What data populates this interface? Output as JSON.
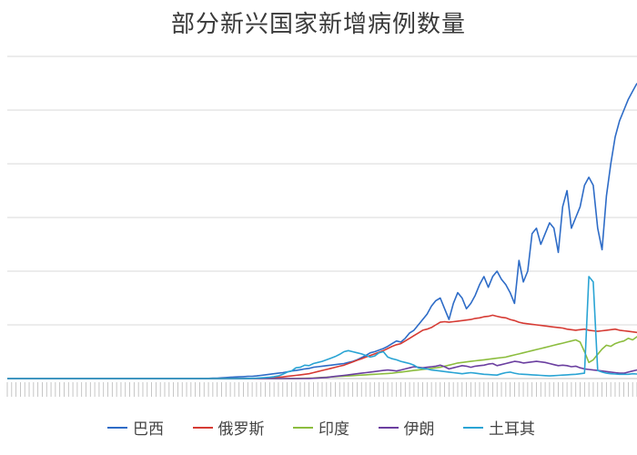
{
  "chart_data": {
    "type": "line",
    "title": "部分新兴国家新增病例数量",
    "xlabel": "",
    "ylabel": "",
    "ylim": [
      0,
      60000
    ],
    "grid": true,
    "legend_position": "bottom",
    "series": [
      {
        "name": "巴西",
        "color": "#2e6cc7",
        "values": [
          0,
          0,
          0,
          0,
          0,
          0,
          0,
          0,
          0,
          0,
          0,
          0,
          0,
          0,
          0,
          0,
          0,
          0,
          0,
          0,
          0,
          0,
          0,
          0,
          0,
          0,
          0,
          0,
          0,
          0,
          0,
          0,
          0,
          0,
          0,
          0,
          0,
          0,
          0,
          0,
          0,
          0,
          0,
          0,
          10,
          20,
          40,
          60,
          90,
          130,
          180,
          230,
          280,
          320,
          360,
          400,
          430,
          500,
          600,
          700,
          800,
          900,
          1000,
          1100,
          1250,
          1400,
          1500,
          1650,
          1800,
          1900,
          2100,
          2200,
          2300,
          2400,
          2500,
          2600,
          2700,
          2800,
          3000,
          3200,
          3500,
          3900,
          4300,
          4800,
          5000,
          5300,
          5600,
          6000,
          6500,
          7000,
          6800,
          7500,
          8500,
          9000,
          10000,
          11000,
          12000,
          13500,
          14500,
          15000,
          13000,
          11000,
          14000,
          16000,
          15000,
          13000,
          14000,
          15500,
          17500,
          19000,
          17000,
          19000,
          20000,
          18500,
          17500,
          16000,
          14000,
          22000,
          18000,
          20000,
          27000,
          28000,
          25000,
          27000,
          29000,
          28000,
          23500,
          32000,
          35000,
          28000,
          30000,
          32000,
          36000,
          37500,
          36000,
          28000,
          24000,
          34000,
          40000,
          45000,
          48000,
          50000,
          52000,
          53500,
          55000
        ]
      },
      {
        "name": "俄罗斯",
        "color": "#d63b34",
        "values": [
          0,
          0,
          0,
          0,
          0,
          0,
          0,
          0,
          0,
          0,
          0,
          0,
          0,
          0,
          0,
          0,
          0,
          0,
          0,
          0,
          0,
          0,
          0,
          0,
          0,
          0,
          0,
          0,
          0,
          0,
          0,
          0,
          0,
          0,
          0,
          0,
          0,
          0,
          0,
          0,
          0,
          0,
          0,
          0,
          0,
          0,
          0,
          0,
          0,
          0,
          0,
          0,
          0,
          0,
          10,
          20,
          30,
          50,
          70,
          100,
          150,
          200,
          250,
          300,
          400,
          500,
          600,
          700,
          800,
          900,
          1100,
          1300,
          1500,
          1700,
          1900,
          2100,
          2300,
          2500,
          2800,
          3100,
          3400,
          3700,
          4000,
          4300,
          4600,
          4900,
          5200,
          5600,
          6000,
          6300,
          6500,
          7000,
          7500,
          8000,
          8500,
          9000,
          9200,
          9500,
          10000,
          10500,
          10600,
          10500,
          10600,
          10700,
          10800,
          10900,
          11000,
          11200,
          11300,
          11500,
          11600,
          11800,
          11600,
          11400,
          11300,
          11000,
          10800,
          10500,
          10300,
          10200,
          10100,
          10000,
          9900,
          9800,
          9700,
          9600,
          9500,
          9400,
          9200,
          9100,
          9000,
          9100,
          9200,
          9000,
          8900,
          8800,
          8900,
          9000,
          9100,
          9200,
          9000,
          8900,
          8800,
          8700,
          8600,
          8500,
          8500,
          8600
        ]
      },
      {
        "name": "印度",
        "color": "#8cbd3f",
        "values": [
          0,
          0,
          0,
          0,
          0,
          0,
          0,
          0,
          0,
          0,
          0,
          0,
          0,
          0,
          0,
          0,
          0,
          0,
          0,
          0,
          0,
          0,
          0,
          0,
          0,
          0,
          0,
          0,
          0,
          0,
          0,
          0,
          0,
          0,
          0,
          0,
          0,
          0,
          0,
          0,
          0,
          0,
          0,
          0,
          0,
          0,
          0,
          0,
          0,
          0,
          0,
          0,
          0,
          0,
          0,
          0,
          0,
          0,
          0,
          0,
          0,
          0,
          0,
          0,
          0,
          10,
          20,
          30,
          50,
          80,
          100,
          150,
          200,
          250,
          300,
          350,
          400,
          450,
          500,
          550,
          600,
          650,
          700,
          750,
          800,
          850,
          900,
          950,
          1000,
          1100,
          1200,
          1300,
          1400,
          1500,
          1600,
          1700,
          1800,
          1900,
          2000,
          2100,
          2300,
          2500,
          2700,
          2900,
          3000,
          3100,
          3200,
          3300,
          3400,
          3500,
          3600,
          3700,
          3800,
          3900,
          4000,
          4200,
          4400,
          4600,
          4800,
          5000,
          5200,
          5400,
          5600,
          5800,
          6000,
          6200,
          6400,
          6600,
          6800,
          7000,
          7200,
          6800,
          5000,
          3000,
          3500,
          4500,
          5500,
          6200,
          6000,
          6500,
          6800,
          7000,
          7500,
          7200,
          7800,
          8000,
          7500,
          8300,
          8500,
          9000,
          9500,
          9800,
          10000,
          10500
        ]
      },
      {
        "name": "伊朗",
        "color": "#6b3fa0",
        "values": [
          0,
          0,
          0,
          0,
          0,
          0,
          0,
          0,
          0,
          0,
          0,
          0,
          0,
          0,
          0,
          0,
          0,
          0,
          0,
          0,
          0,
          0,
          0,
          0,
          0,
          0,
          0,
          0,
          0,
          0,
          0,
          0,
          0,
          0,
          0,
          0,
          0,
          0,
          0,
          0,
          0,
          0,
          0,
          0,
          0,
          0,
          0,
          0,
          0,
          0,
          0,
          0,
          0,
          0,
          0,
          0,
          0,
          0,
          0,
          0,
          0,
          0,
          0,
          0,
          0,
          0,
          0,
          0,
          0,
          20,
          50,
          100,
          150,
          200,
          300,
          400,
          500,
          600,
          700,
          800,
          900,
          1000,
          1100,
          1200,
          1300,
          1400,
          1500,
          1600,
          1500,
          1400,
          1600,
          1800,
          2000,
          2200,
          2100,
          2000,
          2100,
          2200,
          2300,
          2500,
          2200,
          1800,
          2000,
          2200,
          2400,
          2300,
          2100,
          2300,
          2400,
          2500,
          2700,
          2800,
          2400,
          2600,
          2800,
          3000,
          3200,
          3100,
          2900,
          3000,
          3100,
          3200,
          3100,
          3000,
          2800,
          2600,
          2400,
          2500,
          2400,
          2200,
          2300,
          2000,
          1800,
          1700,
          1600,
          1500,
          1400,
          1300,
          1200,
          1100,
          1000,
          1000,
          1200,
          1400,
          1600,
          1800,
          2000,
          2200,
          2500,
          2700,
          2900,
          3000
        ]
      },
      {
        "name": "土耳其",
        "color": "#2aa4d4",
        "values": [
          0,
          0,
          0,
          0,
          0,
          0,
          0,
          0,
          0,
          0,
          0,
          0,
          0,
          0,
          0,
          0,
          0,
          0,
          0,
          0,
          0,
          0,
          0,
          0,
          0,
          0,
          0,
          0,
          0,
          0,
          0,
          0,
          0,
          0,
          0,
          0,
          0,
          0,
          0,
          0,
          0,
          0,
          0,
          0,
          0,
          0,
          0,
          0,
          0,
          0,
          0,
          0,
          0,
          0,
          5,
          20,
          50,
          90,
          130,
          180,
          250,
          350,
          500,
          800,
          1200,
          1400,
          2000,
          2100,
          2500,
          2400,
          2800,
          3000,
          3200,
          3500,
          3800,
          4100,
          4500,
          5000,
          5200,
          5000,
          4800,
          4600,
          4300,
          4000,
          4200,
          4800,
          5000,
          4000,
          3700,
          3500,
          3200,
          3000,
          2800,
          2500,
          2000,
          1900,
          1800,
          1600,
          1500,
          1400,
          1300,
          1200,
          1100,
          1000,
          900,
          1000,
          1100,
          1000,
          900,
          800,
          750,
          700,
          650,
          900,
          1100,
          1200,
          1000,
          850,
          800,
          750,
          700,
          650,
          600,
          550,
          500,
          550,
          600,
          650,
          700,
          750,
          800,
          900,
          1000,
          19000,
          18000,
          1500,
          1200,
          1000,
          900,
          850,
          800,
          800,
          800,
          900,
          850,
          800,
          900,
          1000,
          1050,
          1100,
          1050,
          1000,
          1100,
          1200
        ]
      }
    ],
    "x_tick_labels_note": "dense rotated date labels (illegible)"
  },
  "legend": [
    {
      "name": "巴西",
      "color": "#2e6cc7"
    },
    {
      "name": "俄罗斯",
      "color": "#d63b34"
    },
    {
      "name": "印度",
      "color": "#8cbd3f"
    },
    {
      "name": "伊朗",
      "color": "#6b3fa0"
    },
    {
      "name": "土耳其",
      "color": "#2aa4d4"
    }
  ]
}
